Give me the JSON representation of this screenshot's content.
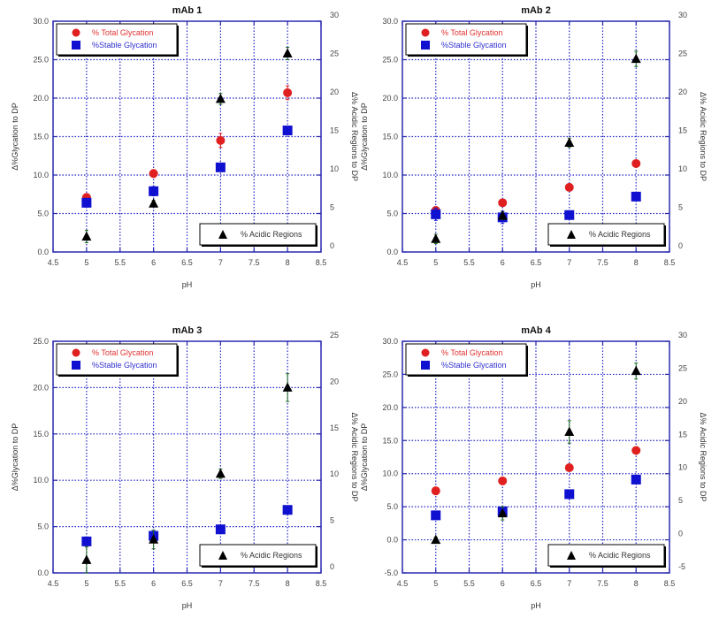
{
  "chart_data": [
    {
      "type": "scatter",
      "title": "mAb 1",
      "xlabel": "pH",
      "ylabel": "Δ%Glycation to DP",
      "y2label": "Δ% Acidic Regions to DP",
      "xlim": [
        4.5,
        8.5
      ],
      "ylim": [
        0,
        30
      ],
      "y2lim": [
        0,
        30
      ],
      "xticks": [
        "4.5",
        "5",
        "5.5",
        "6",
        "6.5",
        "7",
        "7.5",
        "8",
        "8.5"
      ],
      "yticks": [
        "0.0",
        "5.0",
        "10.0",
        "15.0",
        "20.0",
        "25.0",
        "30.0"
      ],
      "y2ticks": [
        "0",
        "5",
        "10",
        "15",
        "20",
        "25",
        "30"
      ],
      "grid": true,
      "series": [
        {
          "name": "% Total Glycation",
          "axis": "left",
          "marker": "circle",
          "color": "#e02020",
          "x": [
            5,
            6,
            7,
            8
          ],
          "values": [
            7.1,
            10.2,
            14.5,
            20.7
          ],
          "err": [
            0.3,
            0.5,
            0.9,
            0.9
          ]
        },
        {
          "name": "%Stable Glycation",
          "axis": "left",
          "marker": "square",
          "color": "#1010d0",
          "x": [
            5,
            6,
            7,
            8
          ],
          "values": [
            6.4,
            7.9,
            11.0,
            15.8
          ],
          "err": [
            0.3,
            0.6,
            0.3,
            0.3
          ]
        },
        {
          "name": "% Acidic Regions",
          "axis": "right",
          "marker": "triangle",
          "color": "#000000",
          "x": [
            5,
            6,
            7,
            8
          ],
          "values": [
            2.0,
            6.3,
            19.9,
            25.8
          ],
          "err": [
            0.8,
            0.4,
            0.7,
            0.8
          ]
        }
      ],
      "legend_top": "top-left",
      "legend_bottom": "bottom-right"
    },
    {
      "type": "scatter",
      "title": "mAb 2",
      "xlabel": "pH",
      "ylabel": "Δ%Glycation to DP",
      "y2label": "Δ% Acidic Regions to DP",
      "xlim": [
        4.5,
        8.5
      ],
      "ylim": [
        0,
        30
      ],
      "y2lim": [
        0,
        30
      ],
      "xticks": [
        "4.5",
        "5",
        "5.5",
        "6",
        "6.5",
        "7",
        "7.5",
        "8",
        "8.5"
      ],
      "yticks": [
        "0.0",
        "5.0",
        "10.0",
        "15.0",
        "20.0",
        "25.0",
        "30.0"
      ],
      "y2ticks": [
        "0",
        "5",
        "10",
        "15",
        "20",
        "25",
        "30"
      ],
      "grid": true,
      "series": [
        {
          "name": "% Total Glycation",
          "axis": "left",
          "marker": "circle",
          "color": "#e02020",
          "x": [
            5,
            6,
            7,
            8
          ],
          "values": [
            5.4,
            6.4,
            8.4,
            11.5
          ],
          "err": [
            0.3,
            0.3,
            0.3,
            0.3
          ]
        },
        {
          "name": "%Stable Glycation",
          "axis": "left",
          "marker": "square",
          "color": "#1010d0",
          "x": [
            5,
            6,
            7,
            8
          ],
          "values": [
            4.9,
            4.5,
            4.8,
            7.2
          ],
          "err": [
            0.8,
            0.8,
            0.3,
            0.3
          ]
        },
        {
          "name": "% Acidic Regions",
          "axis": "right",
          "marker": "triangle",
          "color": "#000000",
          "x": [
            5,
            6,
            7,
            8
          ],
          "values": [
            1.7,
            4.7,
            14.2,
            25.1
          ],
          "err": [
            0.6,
            0.5,
            0.6,
            1.0
          ]
        }
      ],
      "legend_top": "top-left",
      "legend_bottom": "bottom-right"
    },
    {
      "type": "scatter",
      "title": "mAb 3",
      "xlabel": "pH",
      "ylabel": "Δ%Glycation to DP",
      "y2label": "Δ% Acidic Regions to DP",
      "xlim": [
        4.5,
        8.5
      ],
      "ylim": [
        0,
        25
      ],
      "y2lim": [
        0,
        25
      ],
      "xticks": [
        "4.5",
        "5",
        "5.5",
        "6",
        "6.5",
        "7",
        "7.5",
        "8",
        "8.5"
      ],
      "yticks": [
        "0.0",
        "5.0",
        "10.0",
        "15.0",
        "20.0",
        "25.0"
      ],
      "y2ticks": [
        "0",
        "5",
        "10",
        "15",
        "20",
        "25"
      ],
      "grid": true,
      "series": [
        {
          "name": "% Total Glycation",
          "axis": "left",
          "marker": "circle",
          "color": "#e02020",
          "x": [],
          "values": [],
          "err": []
        },
        {
          "name": "%Stable Glycation",
          "axis": "left",
          "marker": "square",
          "color": "#1010d0",
          "x": [
            5,
            6,
            7,
            8
          ],
          "values": [
            3.4,
            4.0,
            4.7,
            6.8
          ],
          "err": [
            0.3,
            0.6,
            0.4,
            0.2
          ]
        },
        {
          "name": "% Acidic Regions",
          "axis": "right",
          "marker": "triangle",
          "color": "#000000",
          "x": [
            5,
            6,
            7,
            8
          ],
          "values": [
            1.4,
            3.6,
            10.7,
            20.0
          ],
          "err": [
            1.4,
            1.0,
            0.5,
            1.5
          ]
        }
      ],
      "legend_top": "top-left",
      "legend_bottom": "bottom-right"
    },
    {
      "type": "scatter",
      "title": "mAb 4",
      "xlabel": "pH",
      "ylabel": "Δ%Glycation to DP",
      "y2label": "Δ% Acidic Regions to DP",
      "xlim": [
        4.5,
        8.5
      ],
      "ylim": [
        -5,
        30
      ],
      "y2lim": [
        -5,
        30
      ],
      "xticks": [
        "4.5",
        "5",
        "5.5",
        "6",
        "6.5",
        "7",
        "7.5",
        "8",
        "8.5"
      ],
      "yticks": [
        "-5.0",
        "0.0",
        "5.0",
        "10.0",
        "15.0",
        "20.0",
        "25.0",
        "30.0"
      ],
      "y2ticks": [
        "-5",
        "0",
        "5",
        "10",
        "15",
        "20",
        "25",
        "30"
      ],
      "grid": true,
      "series": [
        {
          "name": "% Total Glycation",
          "axis": "left",
          "marker": "circle",
          "color": "#e02020",
          "x": [
            5,
            6,
            7,
            8
          ],
          "values": [
            7.4,
            8.9,
            10.9,
            13.5
          ],
          "err": [
            0.3,
            0.4,
            0.3,
            0.3
          ]
        },
        {
          "name": "%Stable Glycation",
          "axis": "left",
          "marker": "square",
          "color": "#1010d0",
          "x": [
            5,
            6,
            7,
            8
          ],
          "values": [
            3.7,
            4.3,
            6.9,
            9.1
          ],
          "err": [
            0.3,
            0.3,
            0.5,
            0.3
          ]
        },
        {
          "name": "% Acidic Regions",
          "axis": "right",
          "marker": "triangle",
          "color": "#000000",
          "x": [
            5,
            6,
            7,
            8
          ],
          "values": [
            0.0,
            4.0,
            16.3,
            25.5
          ],
          "err": [
            0.4,
            1.0,
            1.7,
            1.2
          ]
        }
      ],
      "legend_top": "top-left",
      "legend_bottom": "bottom-right"
    }
  ]
}
